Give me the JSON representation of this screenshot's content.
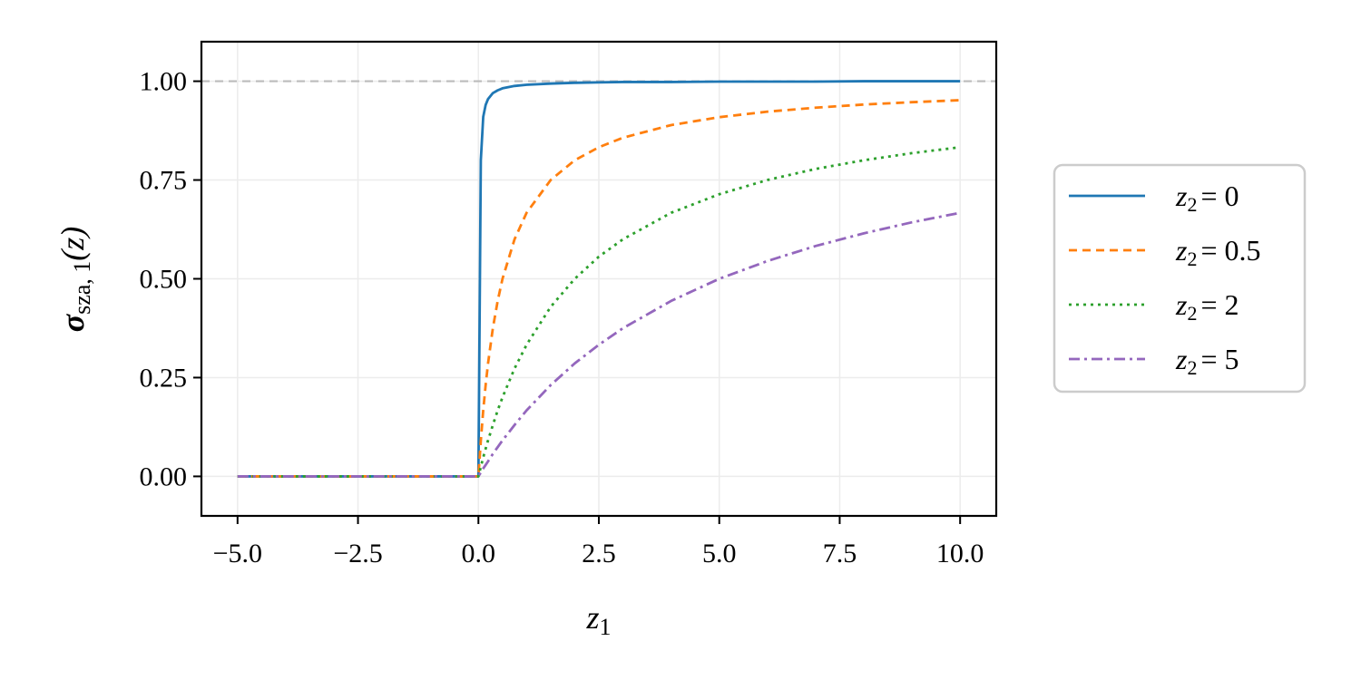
{
  "chart_data": {
    "type": "line",
    "xlabel": "z",
    "xlabel_sub": "1",
    "ylabel": "σ",
    "ylabel_sub": "sza, 1",
    "ylabel_arg": "(z)",
    "xlim": [
      -5.75,
      10.75
    ],
    "ylim": [
      -0.1,
      1.1
    ],
    "xticks": [
      -5.0,
      -2.5,
      0.0,
      2.5,
      5.0,
      7.5,
      10.0
    ],
    "xtick_labels": [
      "−5.0",
      "−2.5",
      "0.0",
      "2.5",
      "5.0",
      "7.5",
      "10.0"
    ],
    "yticks": [
      0.0,
      0.25,
      0.5,
      0.75,
      1.0
    ],
    "ytick_labels": [
      "0.00",
      "0.25",
      "0.50",
      "0.75",
      "1.00"
    ],
    "grid": true,
    "reference_line": {
      "y": 1.0,
      "color": "#bbbbbb",
      "style": "dashed"
    },
    "legend_position": "outside-right",
    "x": [
      -5,
      0,
      0.05,
      0.1,
      0.15,
      0.2,
      0.3,
      0.4,
      0.5,
      0.75,
      1,
      1.5,
      2,
      2.5,
      3,
      4,
      5,
      6,
      7,
      8,
      9,
      10
    ],
    "series": [
      {
        "name_prefix": "z",
        "name_sub": "2",
        "name_value": "= 0",
        "color": "#1f77b4",
        "dash": "",
        "values": [
          0,
          0,
          0.8,
          0.91,
          0.94,
          0.955,
          0.97,
          0.977,
          0.982,
          0.988,
          0.991,
          0.994,
          0.996,
          0.997,
          0.998,
          0.998,
          0.999,
          0.999,
          0.999,
          1.0,
          1.0,
          1.0
        ]
      },
      {
        "name_prefix": "z",
        "name_sub": "2",
        "name_value": "= 0.5",
        "color": "#ff7f0e",
        "dash": "9,6",
        "values": [
          0,
          0,
          0.09,
          0.167,
          0.231,
          0.286,
          0.375,
          0.444,
          0.5,
          0.6,
          0.667,
          0.75,
          0.8,
          0.833,
          0.857,
          0.889,
          0.909,
          0.923,
          0.933,
          0.941,
          0.947,
          0.952
        ]
      },
      {
        "name_prefix": "z",
        "name_sub": "2",
        "name_value": "= 2",
        "color": "#2ca02c",
        "dash": "3,5",
        "values": [
          0,
          0,
          0.024,
          0.048,
          0.07,
          0.091,
          0.13,
          0.167,
          0.2,
          0.273,
          0.333,
          0.429,
          0.5,
          0.556,
          0.6,
          0.667,
          0.714,
          0.75,
          0.778,
          0.8,
          0.818,
          0.833
        ]
      },
      {
        "name_prefix": "z",
        "name_sub": "2",
        "name_value": "= 5",
        "color": "#9467bd",
        "dash": "12,5,3,5",
        "values": [
          0,
          0,
          0.01,
          0.02,
          0.029,
          0.038,
          0.057,
          0.074,
          0.091,
          0.13,
          0.167,
          0.231,
          0.286,
          0.333,
          0.375,
          0.444,
          0.5,
          0.545,
          0.583,
          0.615,
          0.643,
          0.667
        ]
      }
    ]
  }
}
